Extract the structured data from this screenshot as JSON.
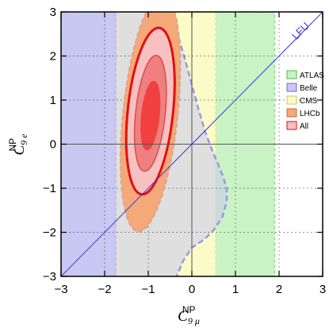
{
  "chart_data": {
    "type": "contour",
    "xlabel": {
      "symbol": "C",
      "sub": "9 μ",
      "sup": "NP"
    },
    "ylabel": {
      "symbol": "C",
      "sub": "9 e",
      "sup": "NP"
    },
    "xlim": [
      -3,
      3
    ],
    "ylim": [
      -3,
      3
    ],
    "xticks": [
      -3,
      -2,
      -1,
      0,
      1,
      2,
      3
    ],
    "yticks": [
      -3,
      -2,
      -1,
      0,
      1,
      2,
      3
    ],
    "xtick_labels": [
      "−3",
      "−2",
      "−1",
      "0",
      "1",
      "2",
      "3"
    ],
    "ytick_labels": [
      "−3",
      "−2",
      "−1",
      "0",
      "1",
      "2",
      "3"
    ],
    "grid": true,
    "lfu_label": "LFU",
    "lfu_line": {
      "x": [
        -3,
        3
      ],
      "y": [
        -3,
        3
      ],
      "color": "#3b3bdc"
    },
    "bands": [
      {
        "name": "ATLAS",
        "x_range": [
          -3,
          1.9
        ],
        "color": "#c9f3c4",
        "edge": "#8fd98a"
      },
      {
        "name": "CMS",
        "x_range": [
          -1.75,
          0.55
        ],
        "color": "#fbfbc8",
        "edge": "#e2e28c"
      },
      {
        "name": "Belle",
        "x_range": [
          -3,
          -1.75
        ],
        "color": "#c8c8f3",
        "edge": "#9a9add"
      }
    ],
    "belle_region": {
      "name": "Belle",
      "boundary_x": [
        -0.45,
        -0.3,
        -0.15,
        0.0,
        0.15,
        0.3,
        0.45,
        0.6,
        0.72,
        0.8,
        0.8,
        0.7,
        0.5,
        0.3,
        0.0,
        -0.2,
        -0.35
      ],
      "boundary_y": [
        3,
        2.4,
        1.9,
        1.35,
        0.8,
        0.3,
        -0.1,
        -0.45,
        -0.75,
        -1.0,
        -1.3,
        -1.65,
        -1.95,
        -2.15,
        -2.35,
        -2.65,
        -3
      ],
      "color": "#c8c8f3",
      "edge": "#9a9add"
    },
    "ellipses": [
      {
        "name": "LHCb",
        "level": "outer",
        "center": [
          -0.95,
          0.7
        ],
        "rx": 0.63,
        "ry": 2.7,
        "rotation_deg": 6,
        "fill": "#f5a878",
        "edge": "#d9a090"
      },
      {
        "name": "All",
        "level": "2σ",
        "center": [
          -0.95,
          0.75
        ],
        "rx": 0.52,
        "ry": 1.9,
        "rotation_deg": 6,
        "fill": "#f8c0c0",
        "edge": "#e01010"
      },
      {
        "name": "All",
        "level": "1σ",
        "center": [
          -0.95,
          0.7
        ],
        "rx": 0.34,
        "ry": 1.32,
        "rotation_deg": 6,
        "fill": "#f08080",
        "edge": "#d05050"
      },
      {
        "name": "All",
        "level": "core",
        "center": [
          -0.95,
          0.65
        ],
        "rx": 0.2,
        "ry": 0.78,
        "rotation_deg": 6,
        "fill": "#f04040",
        "edge": "#f04040"
      }
    ],
    "legend": {
      "placement": "right",
      "entries": [
        {
          "label": "ATLAS",
          "color": "#c9f3c4",
          "edge": "#59b54f"
        },
        {
          "label": "Belle",
          "color": "#c8c8f3",
          "edge": "#6e6ec8"
        },
        {
          "label": "CMS",
          "color": "#fbfbc8",
          "edge": "#c9c95a"
        },
        {
          "label": "LHCb",
          "color": "#f5a878",
          "edge": "#c96a40"
        },
        {
          "label": "All",
          "color": "#f8c0c0",
          "edge": "#e01010"
        }
      ]
    }
  }
}
